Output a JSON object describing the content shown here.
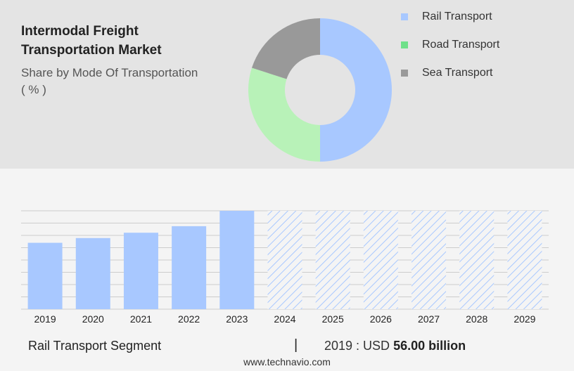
{
  "header": {
    "title_line1": "Intermodal Freight",
    "title_line2": "Transportation Market",
    "subtitle_line1": "Share by Mode Of Transportation",
    "subtitle_line2": "( % )"
  },
  "colors": {
    "rail": "#a8c8ff",
    "road": "#b8f2b8",
    "sea": "#999999",
    "legend_road": "#6fe08a",
    "bar": "#a8c8ff",
    "forecast_hatch": "#a8c8ff",
    "grid": "#cccccc"
  },
  "chart_data": [
    {
      "type": "pie",
      "variant": "donut",
      "labels": [
        "Rail Transport",
        "Road Transport",
        "Sea Transport"
      ],
      "values": [
        50,
        30,
        20
      ],
      "legend_position": "right"
    },
    {
      "type": "bar",
      "categories": [
        "2019",
        "2020",
        "2021",
        "2022",
        "2023",
        "2024",
        "2025",
        "2026",
        "2027",
        "2028",
        "2029"
      ],
      "values": [
        56.0,
        60.0,
        64.5,
        70.0,
        83.0,
        null,
        null,
        null,
        null,
        null,
        null
      ],
      "forecast_years": [
        "2024",
        "2025",
        "2026",
        "2027",
        "2028",
        "2029"
      ],
      "forecast_style": "hatched, shown at full height",
      "grid": true,
      "ylim": [
        0,
        83
      ]
    }
  ],
  "footer": {
    "segment": "Rail Transport Segment",
    "separator": "|",
    "year_label": "2019 : USD",
    "value": "56.00 billion",
    "site": "www.technavio.com"
  }
}
